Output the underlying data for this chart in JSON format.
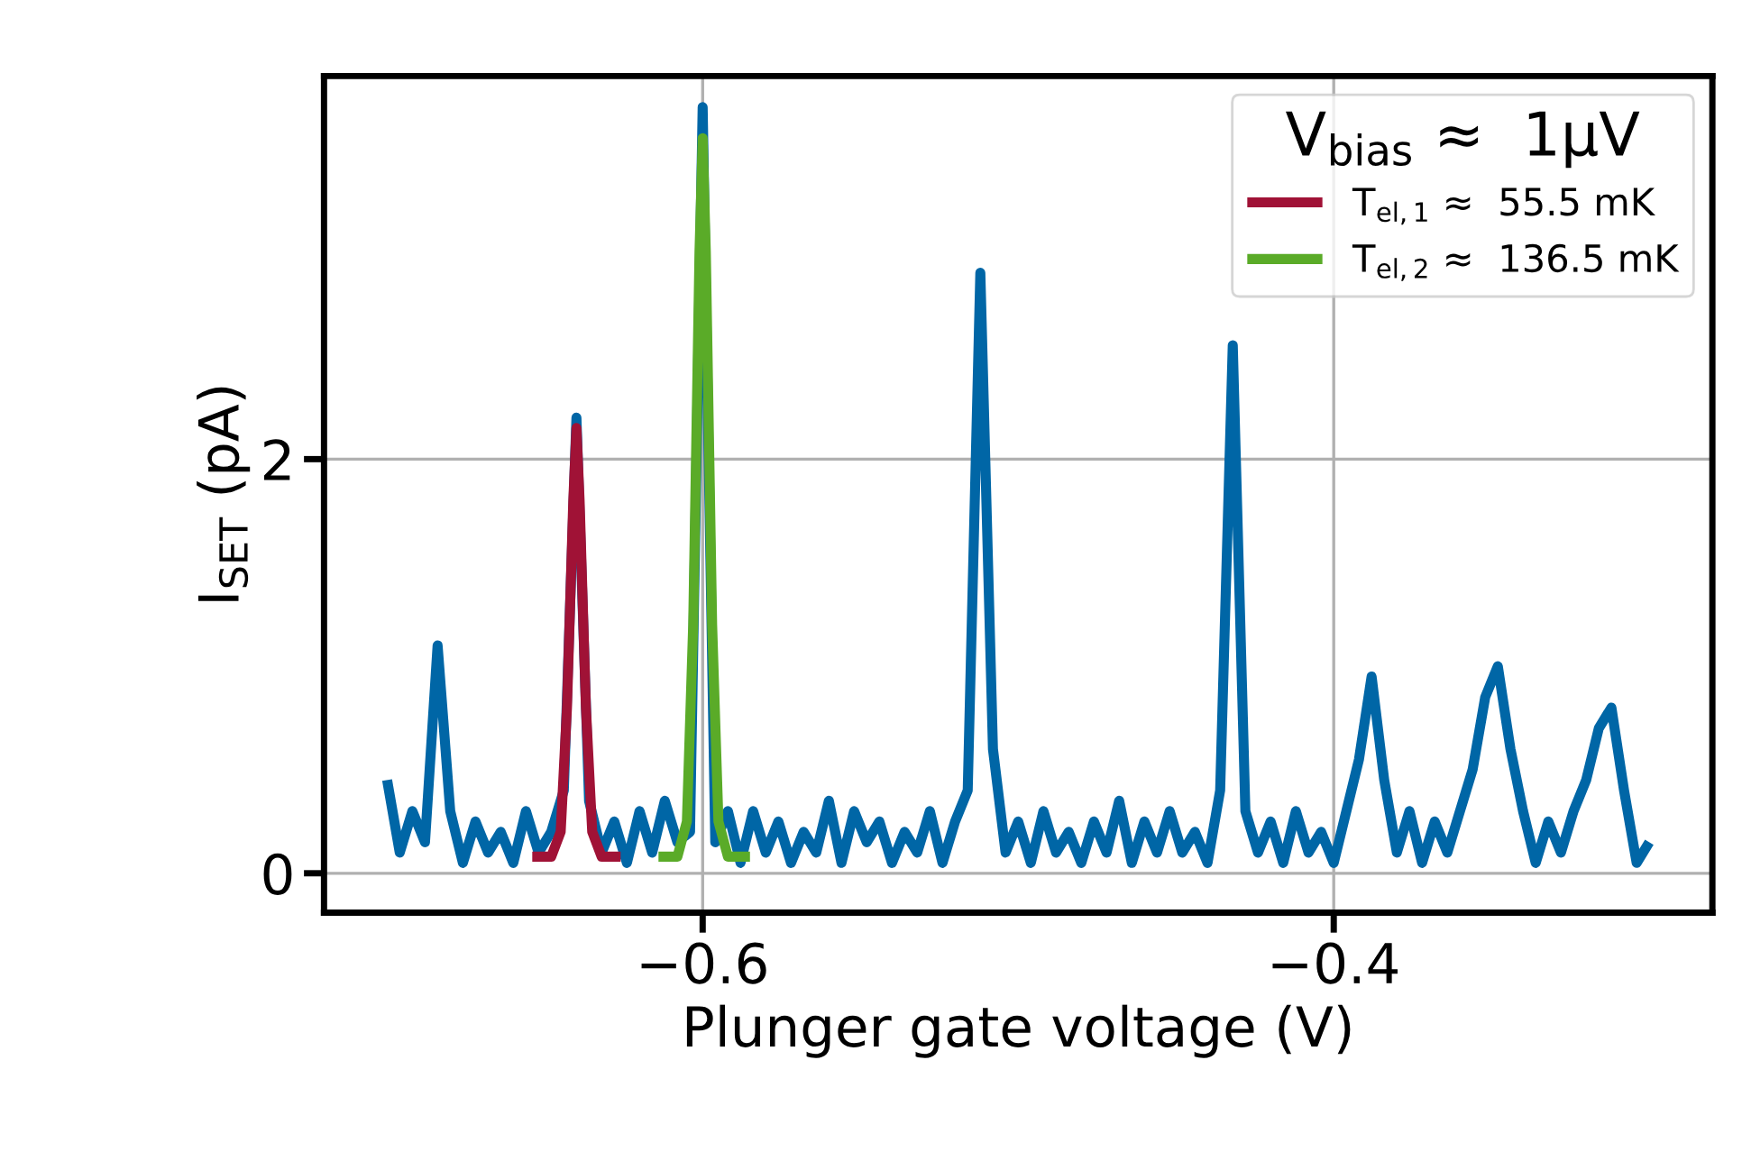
{
  "chart_data": {
    "type": "line",
    "xlabel": "Plunger gate voltage (V)",
    "ylabel": "I$_{SET}$ (pA)",
    "legend_title": "V$_{bias}$ ≈  1μV",
    "xlim": [
      -0.72,
      -0.28
    ],
    "ylim": [
      -0.19,
      3.85
    ],
    "xticks": [
      {
        "value": -0.6,
        "label": "−0.6"
      },
      {
        "value": -0.4,
        "label": "−0.4"
      }
    ],
    "yticks": [
      0,
      2
    ],
    "grid": true,
    "legend": "top right",
    "line_style": "solid",
    "marker": "none",
    "series": [
      {
        "color": "#0066a6",
        "x": [
          -0.7,
          -0.696,
          -0.692,
          -0.688,
          -0.684,
          -0.68,
          -0.676,
          -0.672,
          -0.668,
          -0.664,
          -0.66,
          -0.656,
          -0.652,
          -0.648,
          -0.644,
          -0.64,
          -0.636,
          -0.632,
          -0.628,
          -0.624,
          -0.62,
          -0.616,
          -0.612,
          -0.608,
          -0.604,
          -0.6,
          -0.596,
          -0.592,
          -0.588,
          -0.584,
          -0.58,
          -0.576,
          -0.572,
          -0.568,
          -0.564,
          -0.56,
          -0.556,
          -0.552,
          -0.548,
          -0.544,
          -0.54,
          -0.536,
          -0.532,
          -0.528,
          -0.524,
          -0.52,
          -0.516,
          -0.512,
          -0.508,
          -0.504,
          -0.5,
          -0.496,
          -0.492,
          -0.488,
          -0.484,
          -0.48,
          -0.476,
          -0.472,
          -0.468,
          -0.464,
          -0.46,
          -0.456,
          -0.452,
          -0.448,
          -0.444,
          -0.44,
          -0.436,
          -0.432,
          -0.428,
          -0.424,
          -0.42,
          -0.416,
          -0.412,
          -0.408,
          -0.404,
          -0.4,
          -0.396,
          -0.392,
          -0.388,
          -0.384,
          -0.38,
          -0.376,
          -0.372,
          -0.368,
          -0.364,
          -0.36,
          -0.356,
          -0.352,
          -0.348,
          -0.344,
          -0.34,
          -0.336,
          -0.332,
          -0.328,
          -0.324,
          -0.32,
          -0.316,
          -0.312,
          -0.308,
          -0.304,
          -0.3
        ],
        "values": [
          0.45,
          0.1,
          0.3,
          0.15,
          1.1,
          0.3,
          0.05,
          0.25,
          0.1,
          0.2,
          0.05,
          0.3,
          0.1,
          0.2,
          0.4,
          2.2,
          0.35,
          0.1,
          0.25,
          0.05,
          0.3,
          0.1,
          0.35,
          0.15,
          0.2,
          3.7,
          0.15,
          0.3,
          0.05,
          0.3,
          0.1,
          0.25,
          0.05,
          0.2,
          0.1,
          0.35,
          0.05,
          0.3,
          0.15,
          0.25,
          0.05,
          0.2,
          0.1,
          0.3,
          0.05,
          0.25,
          0.4,
          2.9,
          0.6,
          0.1,
          0.25,
          0.05,
          0.3,
          0.1,
          0.2,
          0.05,
          0.25,
          0.1,
          0.35,
          0.05,
          0.25,
          0.1,
          0.3,
          0.1,
          0.2,
          0.05,
          0.4,
          2.55,
          0.3,
          0.1,
          0.25,
          0.05,
          0.3,
          0.1,
          0.2,
          0.05,
          0.3,
          0.55,
          0.95,
          0.45,
          0.1,
          0.3,
          0.05,
          0.25,
          0.1,
          0.3,
          0.5,
          0.85,
          1.0,
          0.6,
          0.3,
          0.05,
          0.25,
          0.1,
          0.3,
          0.45,
          0.7,
          0.8,
          0.4,
          0.05,
          0.15
        ]
      },
      {
        "name": "T$_{el,1}$ ≈  55.5 mK",
        "color": "#a01236",
        "x": [
          -0.654,
          -0.648,
          -0.645,
          -0.643,
          -0.641,
          -0.64,
          -0.639,
          -0.637,
          -0.635,
          -0.632,
          -0.626
        ],
        "values": [
          0.08,
          0.08,
          0.2,
          0.8,
          1.8,
          2.15,
          1.8,
          0.8,
          0.2,
          0.08,
          0.08
        ]
      },
      {
        "name": "T$_{el,2}$ ≈  136.5 mK",
        "color": "#5aab28",
        "x": [
          -0.614,
          -0.608,
          -0.605,
          -0.603,
          -0.601,
          -0.6,
          -0.599,
          -0.597,
          -0.595,
          -0.592,
          -0.585
        ],
        "values": [
          0.08,
          0.08,
          0.25,
          1.2,
          3.0,
          3.55,
          3.0,
          1.2,
          0.25,
          0.08,
          0.08
        ]
      }
    ]
  }
}
